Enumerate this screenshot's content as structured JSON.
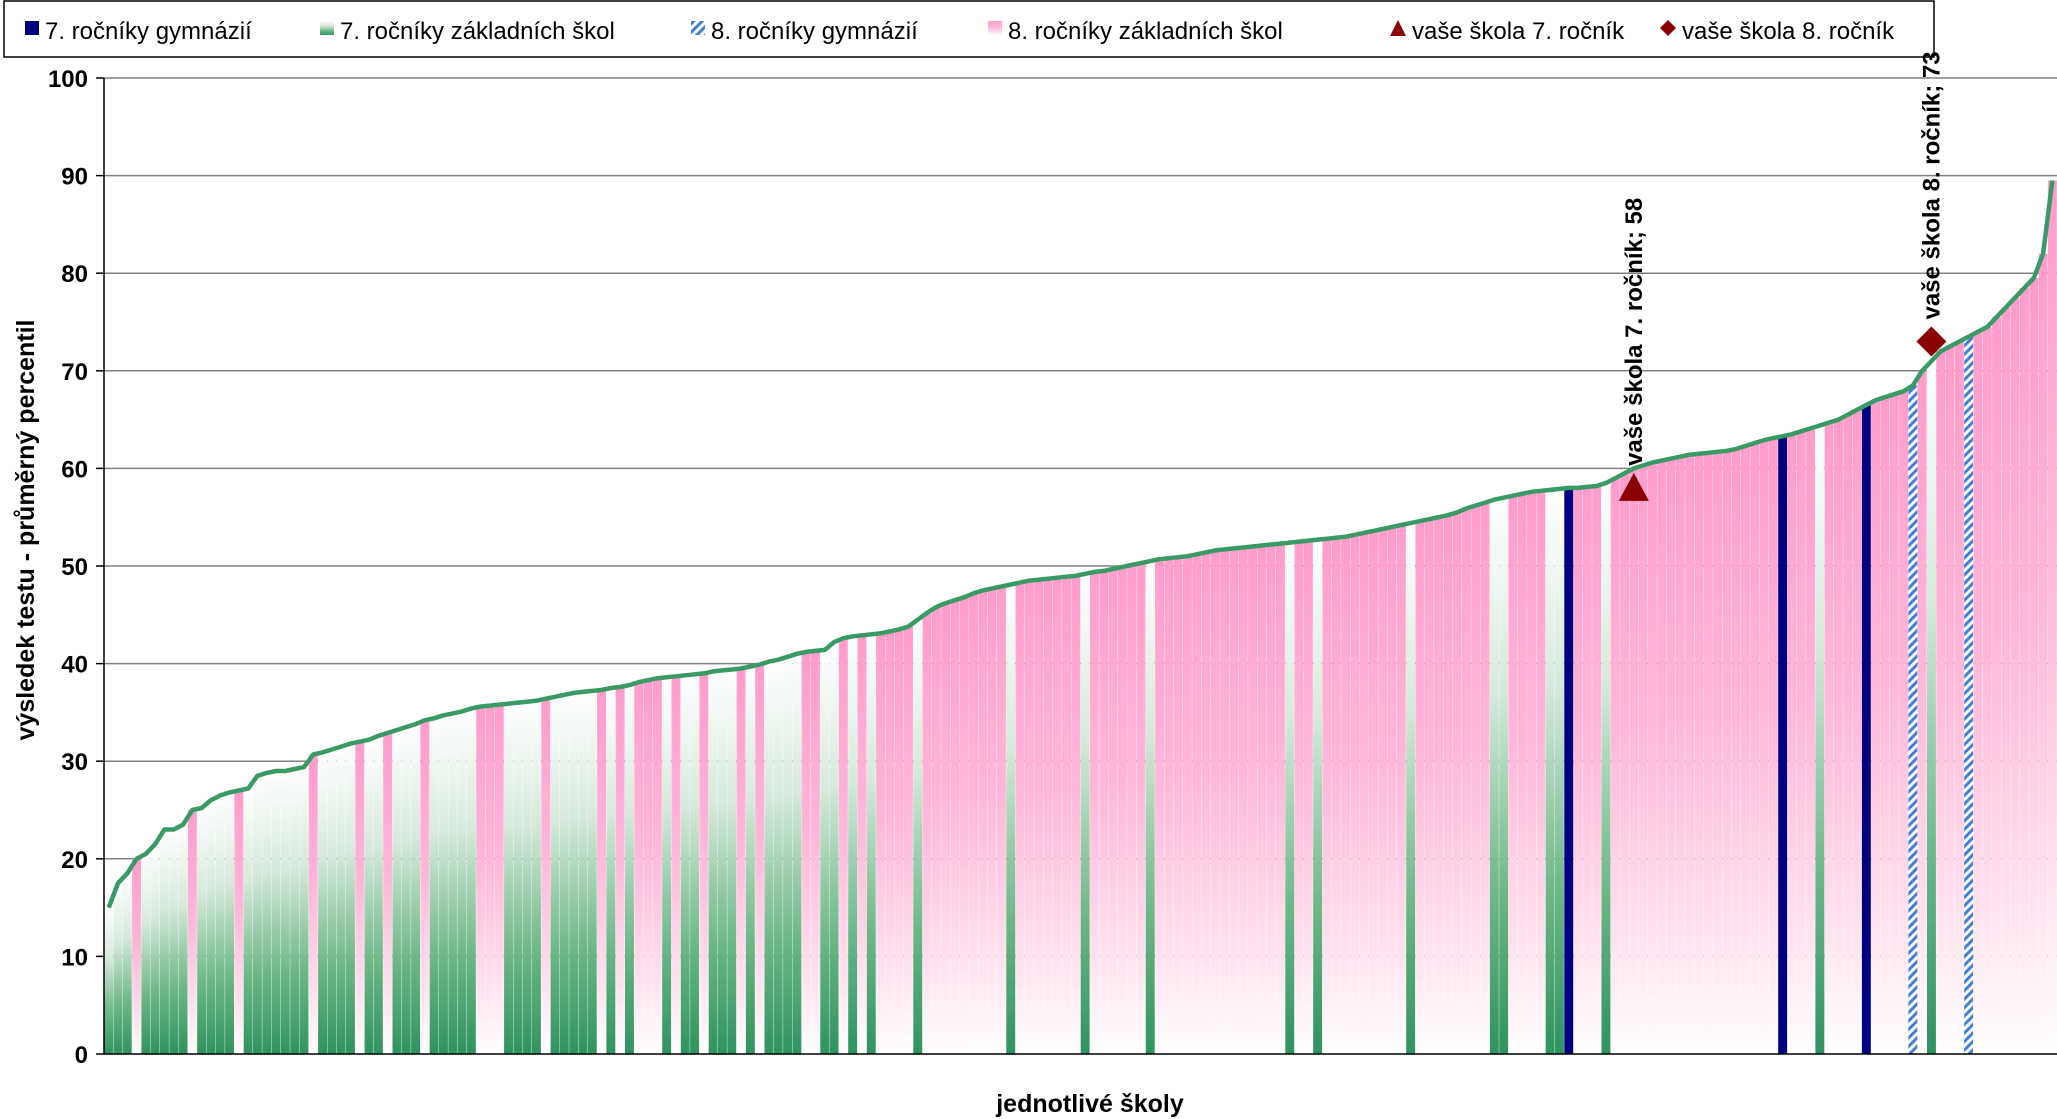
{
  "chart_data": {
    "type": "bar",
    "title": "",
    "xlabel": "jednotlivé školy",
    "ylabel": "výsledek testu - průměrný percentil",
    "ylim": [
      0,
      100
    ],
    "yticks": [
      0,
      10,
      20,
      30,
      40,
      50,
      60,
      70,
      80,
      90,
      100
    ],
    "grid": true,
    "legend_position": "top",
    "colors": {
      "gym7": "#000080",
      "zs7": "#3a9a66",
      "gym8": "#3f7fd4",
      "zs8": "#ff9ccc",
      "line": "#3a9a66",
      "marker": "#8b0000",
      "grid": "#808080"
    },
    "legend": [
      {
        "label": "7. ročníky gymnázií",
        "kind": "gym7"
      },
      {
        "label": "7. ročníky základních škol",
        "kind": "zs7"
      },
      {
        "label": "8. ročníky gymnázií",
        "kind": "gym8"
      },
      {
        "label": "8. ročníky základních škol",
        "kind": "zs8"
      },
      {
        "label": "vaše škola 7. ročník",
        "kind": "marker7"
      },
      {
        "label": "vaše škola 8. ročník",
        "kind": "marker8"
      }
    ],
    "series": [
      {
        "name": "7. ročníky gymnázií",
        "kind": "gym7",
        "runs": [
          [
            59.5,
            59.5,
            0
          ],
          [
            64,
            64,
            0
          ],
          [
            67,
            67,
            0
          ],
          [
            82,
            90,
            1
          ]
        ]
      },
      {
        "name": "7. ročníky základních škol",
        "kind": "zs7",
        "runs": [
          [
            15,
            20,
            3
          ],
          [
            20,
            24,
            2
          ],
          [
            25,
            27,
            3
          ],
          [
            27,
            30,
            4
          ],
          [
            30,
            31,
            1
          ],
          [
            31,
            33,
            4
          ],
          [
            33,
            35,
            3
          ],
          [
            35,
            36,
            3
          ],
          [
            36,
            37,
            2
          ],
          [
            37,
            38,
            4
          ],
          [
            38,
            39,
            3
          ],
          [
            39,
            40,
            3
          ],
          [
            40,
            41,
            2
          ],
          [
            41,
            43,
            2
          ],
          [
            43,
            46,
            2
          ],
          [
            46,
            48,
            1
          ],
          [
            48,
            50,
            1
          ],
          [
            50,
            52,
            1
          ],
          [
            52,
            53,
            1
          ],
          [
            53,
            55,
            1
          ],
          [
            55,
            57,
            1
          ],
          [
            57,
            58,
            1
          ],
          [
            58,
            58,
            2
          ],
          [
            59,
            60,
            0
          ],
          [
            61,
            62,
            0
          ],
          [
            64,
            65,
            0
          ],
          [
            68,
            69,
            0
          ],
          [
            73,
            74,
            0
          ]
        ]
      },
      {
        "name": "8. ročníky gymnázií",
        "kind": "gym8",
        "runs": [
          [
            67,
            67,
            0
          ],
          [
            73,
            73,
            0
          ]
        ]
      },
      {
        "name": "8. ročníky základních škol",
        "kind": "zs8",
        "runs": [
          [
            20,
            20,
            0
          ],
          [
            25,
            25,
            0
          ],
          [
            27,
            27,
            0
          ],
          [
            30,
            30,
            0
          ],
          [
            31,
            31,
            0
          ],
          [
            33,
            33,
            0
          ],
          [
            35,
            36,
            2
          ],
          [
            36,
            37,
            3
          ],
          [
            38,
            40,
            6
          ],
          [
            40,
            42,
            3
          ],
          [
            43,
            44,
            4
          ],
          [
            45,
            47,
            3
          ],
          [
            47,
            49,
            8
          ],
          [
            49,
            51,
            6
          ],
          [
            51,
            52,
            8
          ],
          [
            52,
            54,
            9
          ],
          [
            54,
            56,
            7
          ],
          [
            56,
            57,
            8
          ],
          [
            57,
            58,
            5
          ],
          [
            59,
            62,
            10
          ],
          [
            62,
            64,
            8
          ],
          [
            65,
            67,
            4
          ],
          [
            67,
            68,
            0
          ],
          [
            68,
            72,
            4
          ],
          [
            73,
            78,
            5
          ],
          [
            80,
            82,
            1
          ]
        ]
      }
    ],
    "order": [
      "zs7",
      "zs7",
      "zs7",
      "zs8",
      "zs7",
      "zs7",
      "zs7",
      "zs7",
      "zs7",
      "zs8",
      "zs7",
      "zs7",
      "zs7",
      "zs7",
      "zs8",
      "zs7",
      "zs7",
      "zs7",
      "zs7",
      "zs7",
      "zs7",
      "zs7",
      "zs8",
      "zs7",
      "zs7",
      "zs7",
      "zs7",
      "zs8",
      "zs7",
      "zs7",
      "zs8",
      "zs7",
      "zs7",
      "zs7",
      "zs8",
      "zs7",
      "zs7",
      "zs7",
      "zs7",
      "zs7",
      "zs8",
      "zs8",
      "zs8",
      "zs7",
      "zs7",
      "zs7",
      "zs7",
      "zs8",
      "zs7",
      "zs7",
      "zs7",
      "zs7",
      "zs7",
      "zs8",
      "zs7",
      "zs8",
      "zs7",
      "zs8",
      "zs8",
      "zs8",
      "zs7",
      "zs8",
      "zs7",
      "zs7",
      "zs8",
      "zs7",
      "zs7",
      "zs7",
      "zs8",
      "zs7",
      "zs8",
      "zs7",
      "zs7",
      "zs7",
      "zs7",
      "zs8",
      "zs8",
      "zs7",
      "zs7",
      "zs8",
      "zs7",
      "zs8",
      "zs7",
      "zs8",
      "zs8",
      "zs8",
      "zs8",
      "zs7",
      "zs8",
      "zs8",
      "zs8",
      "zs8",
      "zs8",
      "zs8",
      "zs8",
      "zs8",
      "zs8",
      "zs7",
      "zs8",
      "zs8",
      "zs8",
      "zs8",
      "zs8",
      "zs8",
      "zs8",
      "zs7",
      "zs8",
      "zs8",
      "zs8",
      "zs8",
      "zs8",
      "zs8",
      "zs7",
      "zs8",
      "zs8",
      "zs8",
      "zs8",
      "zs8",
      "zs8",
      "zs8",
      "zs8",
      "zs8",
      "zs8",
      "zs8",
      "zs8",
      "zs8",
      "zs8",
      "zs7",
      "zs8",
      "zs8",
      "zs7",
      "zs8",
      "zs8",
      "zs8",
      "zs8",
      "zs8",
      "zs8",
      "zs8",
      "zs8",
      "zs8",
      "zs7",
      "zs8",
      "zs8",
      "zs8",
      "zs8",
      "zs8",
      "zs8",
      "zs8",
      "zs8",
      "zs7",
      "zs7",
      "zs8",
      "zs8",
      "zs8",
      "zs8",
      "zs7",
      "zs7",
      "gym7",
      "zs8",
      "zs8",
      "zs8",
      "zs7",
      "zs8",
      "zs8",
      "zs8",
      "zs8",
      "zs8",
      "zs8",
      "zs8",
      "zs8",
      "zs8",
      "zs8",
      "zs8",
      "zs8",
      "zs8",
      "zs8",
      "zs8",
      "zs8",
      "zs8",
      "zs8",
      "gym7",
      "zs8",
      "zs8",
      "zs8",
      "zs7",
      "zs8",
      "zs8",
      "zs8",
      "zs8",
      "gym7",
      "zs8",
      "zs8",
      "zs8",
      "zs8",
      "gym8",
      "zs8",
      "zs7",
      "zs8",
      "zs8",
      "zs8",
      "gym8",
      "zs8",
      "zs8",
      "zs8",
      "zs8",
      "zs8",
      "zs8",
      "zs8",
      "zs8",
      "zs8",
      "zs8",
      "zs8",
      "gym7",
      "gym7"
    ],
    "values": [
      15,
      17.5,
      18.5,
      20,
      20.5,
      21.5,
      23,
      23,
      23.5,
      25,
      25.2,
      26,
      26.5,
      26.8,
      27,
      27.2,
      28.5,
      28.8,
      29,
      29,
      29.2,
      29.4,
      30.7,
      30.9,
      31.2,
      31.5,
      31.8,
      32,
      32.2,
      32.6,
      32.9,
      33.2,
      33.5,
      33.8,
      34.2,
      34.4,
      34.7,
      34.9,
      35.1,
      35.4,
      35.6,
      35.7,
      35.8,
      35.9,
      36,
      36.1,
      36.2,
      36.4,
      36.6,
      36.8,
      37,
      37.1,
      37.2,
      37.3,
      37.5,
      37.6,
      37.8,
      38.1,
      38.3,
      38.5,
      38.6,
      38.7,
      38.8,
      38.9,
      39,
      39.2,
      39.3,
      39.4,
      39.5,
      39.7,
      39.9,
      40.2,
      40.4,
      40.7,
      41,
      41.2,
      41.3,
      41.4,
      42.2,
      42.6,
      42.8,
      42.9,
      43,
      43.1,
      43.3,
      43.5,
      43.8,
      44.5,
      45.2,
      45.8,
      46.2,
      46.5,
      46.8,
      47.2,
      47.5,
      47.7,
      47.9,
      48.1,
      48.3,
      48.5,
      48.6,
      48.7,
      48.8,
      48.9,
      49,
      49.2,
      49.4,
      49.5,
      49.7,
      49.9,
      50.1,
      50.3,
      50.5,
      50.7,
      50.8,
      50.9,
      51,
      51.2,
      51.4,
      51.6,
      51.7,
      51.8,
      51.9,
      52,
      52.1,
      52.2,
      52.3,
      52.4,
      52.5,
      52.6,
      52.7,
      52.8,
      52.9,
      53,
      53.2,
      53.4,
      53.6,
      53.8,
      54,
      54.2,
      54.4,
      54.6,
      54.8,
      55,
      55.2,
      55.5,
      55.9,
      56.2,
      56.5,
      56.8,
      57,
      57.2,
      57.4,
      57.6,
      57.7,
      57.8,
      57.9,
      58,
      58,
      58.1,
      58.2,
      58.5,
      59,
      59.5,
      60,
      60.3,
      60.6,
      60.8,
      61,
      61.2,
      61.4,
      61.5,
      61.6,
      61.7,
      61.8,
      62,
      62.3,
      62.6,
      62.9,
      63.1,
      63.3,
      63.5,
      63.8,
      64.1,
      64.4,
      64.7,
      65,
      65.5,
      66,
      66.5,
      67,
      67.3,
      67.6,
      67.9,
      68.5,
      70,
      71,
      72,
      72.5,
      73,
      73.5,
      74,
      74.5,
      75.5,
      76.5,
      77.5,
      78.5,
      79.5,
      82,
      89.5
    ],
    "annotations": [
      {
        "label": "vaše škola 7. ročník; 58",
        "series": "vaše škola 7. ročník",
        "value": 58,
        "index": 164,
        "shape": "triangle"
      },
      {
        "label": "vaše škola 8. ročník; 73",
        "series": "vaše škola 8. ročník",
        "value": 73,
        "index": 196,
        "shape": "diamond"
      }
    ]
  }
}
